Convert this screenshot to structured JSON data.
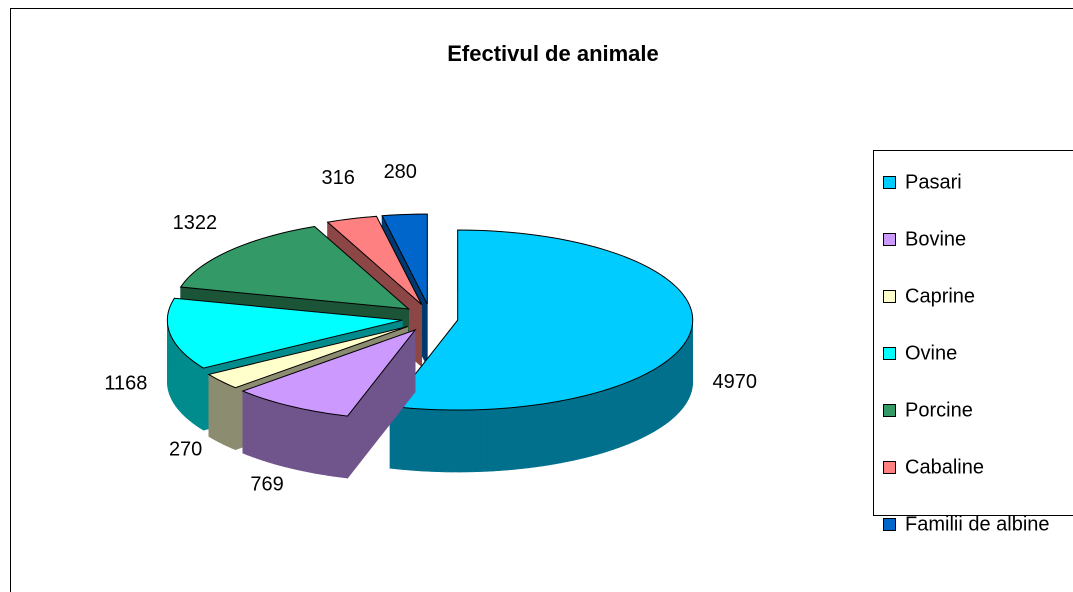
{
  "chart_data": {
    "type": "pie3d",
    "title": "Efectivul de animale",
    "categories": [
      "Pasari",
      "Bovine",
      "Caprine",
      "Ovine",
      "Porcine",
      "Cabaline",
      "Familii de albine"
    ],
    "values": [
      4970,
      769,
      270,
      1168,
      1322,
      316,
      280
    ],
    "colors": [
      "#00ccff",
      "#cc99ff",
      "#ffffcc",
      "#00ffff",
      "#339966",
      "#ff8080",
      "#0066cc"
    ],
    "legend": "right"
  }
}
